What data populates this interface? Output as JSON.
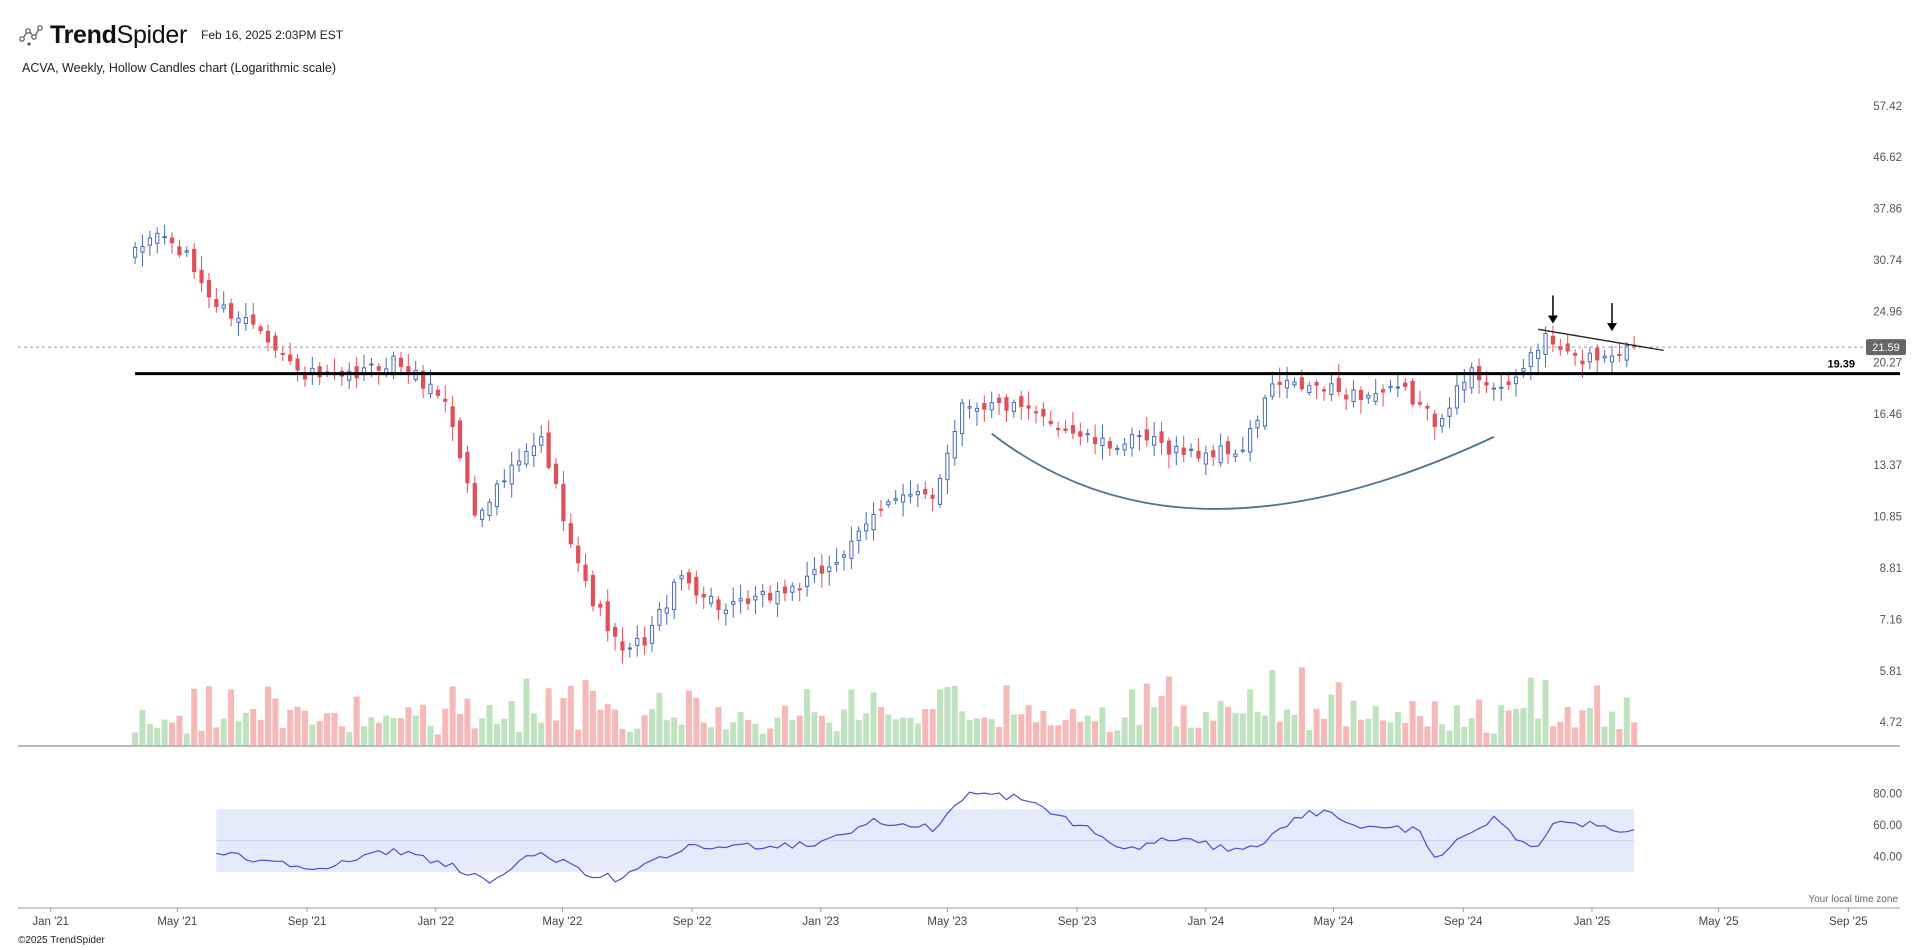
{
  "header": {
    "brand_bold": "Trend",
    "brand_light": "Spider",
    "timestamp": "Feb 16, 2025 2:03PM EST",
    "subtitle": "ACVA, Weekly, Hollow Candles chart (Logarithmic scale)"
  },
  "footer": {
    "copyright": "©2025 TrendSpider",
    "local_time_note": "Your local time zone"
  },
  "colors": {
    "up": "#4a6bb8",
    "down": "#e0505a",
    "volume_up": "#bfe3bf",
    "volume_down": "#f7b8b8",
    "rsi_line": "#4a4fd0",
    "rsi_band": "#e6ebfb",
    "support_line": "#000000",
    "curve": "#4e7394",
    "last_price_label": "#666666"
  },
  "chart_data": {
    "type": "candlestick",
    "symbol": "ACVA",
    "interval": "Weekly",
    "style": "Hollow Candles",
    "scale": "log",
    "x_range": [
      "2020-12-01",
      "2025-10-20"
    ],
    "x_ticks": [
      {
        "date": "2021-01-01",
        "label": "Jan '21"
      },
      {
        "date": "2021-05-01",
        "label": "May '21"
      },
      {
        "date": "2021-09-01",
        "label": "Sep '21"
      },
      {
        "date": "2022-01-01",
        "label": "Jan '22"
      },
      {
        "date": "2022-05-01",
        "label": "May '22"
      },
      {
        "date": "2022-09-01",
        "label": "Sep '22"
      },
      {
        "date": "2023-01-01",
        "label": "Jan '23"
      },
      {
        "date": "2023-05-01",
        "label": "May '23"
      },
      {
        "date": "2023-09-01",
        "label": "Sep '23"
      },
      {
        "date": "2024-01-01",
        "label": "Jan '24"
      },
      {
        "date": "2024-05-01",
        "label": "May '24"
      },
      {
        "date": "2024-09-01",
        "label": "Sep '24"
      },
      {
        "date": "2025-01-01",
        "label": "Jan '25"
      },
      {
        "date": "2025-05-01",
        "label": "May '25"
      },
      {
        "date": "2025-09-01",
        "label": "Sep '25"
      }
    ],
    "y_range": [
      4.3,
      60
    ],
    "y_ticks": [
      "57.42",
      "46.62",
      "37.86",
      "30.74",
      "24.96",
      "20.27",
      "16.46",
      "13.37",
      "10.85",
      "8.81",
      "7.16",
      "5.81",
      "4.72"
    ],
    "first_bar": "2021-03-22",
    "last_price": "21.59",
    "support_level": "19.39",
    "price_path": [
      {
        "date": "2021-03-22",
        "price": 31.5
      },
      {
        "date": "2021-04-12",
        "price": 34.5
      },
      {
        "date": "2021-05-10",
        "price": 31.0
      },
      {
        "date": "2021-06-07",
        "price": 25.5
      },
      {
        "date": "2021-07-19",
        "price": 23.5
      },
      {
        "date": "2021-08-23",
        "price": 19.5
      },
      {
        "date": "2021-10-04",
        "price": 18.8
      },
      {
        "date": "2021-11-22",
        "price": 20.5
      },
      {
        "date": "2022-01-10",
        "price": 17.5
      },
      {
        "date": "2022-02-07",
        "price": 11.0
      },
      {
        "date": "2022-03-21",
        "price": 13.5
      },
      {
        "date": "2022-04-11",
        "price": 14.8
      },
      {
        "date": "2022-05-02",
        "price": 11.0
      },
      {
        "date": "2022-05-23",
        "price": 8.2
      },
      {
        "date": "2022-06-27",
        "price": 6.2
      },
      {
        "date": "2022-07-18",
        "price": 6.6
      },
      {
        "date": "2022-08-22",
        "price": 8.5
      },
      {
        "date": "2022-10-03",
        "price": 7.4
      },
      {
        "date": "2022-11-07",
        "price": 7.8
      },
      {
        "date": "2022-12-19",
        "price": 8.3
      },
      {
        "date": "2023-01-30",
        "price": 9.6
      },
      {
        "date": "2023-03-06",
        "price": 11.8
      },
      {
        "date": "2023-04-17",
        "price": 11.7
      },
      {
        "date": "2023-05-15",
        "price": 17.2
      },
      {
        "date": "2023-06-26",
        "price": 17.0
      },
      {
        "date": "2023-08-07",
        "price": 16.0
      },
      {
        "date": "2023-09-25",
        "price": 14.5
      },
      {
        "date": "2023-11-06",
        "price": 14.8
      },
      {
        "date": "2023-12-18",
        "price": 14.0
      },
      {
        "date": "2024-02-05",
        "price": 14.2
      },
      {
        "date": "2024-03-04",
        "price": 18.5
      },
      {
        "date": "2024-04-15",
        "price": 18.3
      },
      {
        "date": "2024-05-27",
        "price": 17.8
      },
      {
        "date": "2024-07-08",
        "price": 18.0
      },
      {
        "date": "2024-08-05",
        "price": 16.0
      },
      {
        "date": "2024-09-09",
        "price": 19.5
      },
      {
        "date": "2024-10-14",
        "price": 18.0
      },
      {
        "date": "2024-11-04",
        "price": 21.0
      },
      {
        "date": "2024-11-18",
        "price": 22.3
      },
      {
        "date": "2024-12-16",
        "price": 20.5
      },
      {
        "date": "2025-01-13",
        "price": 21.0
      },
      {
        "date": "2025-02-10",
        "price": 21.59
      }
    ],
    "volume_note": "relative weekly volume bars, up weeks green, down weeks red",
    "rsi": {
      "y_ticks": [
        "80.00",
        "60.00",
        "40.00"
      ],
      "band": [
        30,
        70
      ],
      "midline": 50,
      "start": "2021-06-07",
      "path": [
        {
          "date": "2021-06-07",
          "value": 42
        },
        {
          "date": "2021-07-19",
          "value": 38
        },
        {
          "date": "2021-09-20",
          "value": 33
        },
        {
          "date": "2021-11-22",
          "value": 44
        },
        {
          "date": "2022-01-10",
          "value": 36
        },
        {
          "date": "2022-02-21",
          "value": 24
        },
        {
          "date": "2022-04-11",
          "value": 44
        },
        {
          "date": "2022-05-23",
          "value": 28
        },
        {
          "date": "2022-06-27",
          "value": 26
        },
        {
          "date": "2022-08-22",
          "value": 45
        },
        {
          "date": "2022-10-31",
          "value": 47
        },
        {
          "date": "2022-12-26",
          "value": 48
        },
        {
          "date": "2023-02-20",
          "value": 62
        },
        {
          "date": "2023-04-17",
          "value": 58
        },
        {
          "date": "2023-05-22",
          "value": 80
        },
        {
          "date": "2023-07-03",
          "value": 78
        },
        {
          "date": "2023-09-04",
          "value": 60
        },
        {
          "date": "2023-10-16",
          "value": 44
        },
        {
          "date": "2023-12-04",
          "value": 52
        },
        {
          "date": "2024-01-15",
          "value": 45
        },
        {
          "date": "2024-02-26",
          "value": 48
        },
        {
          "date": "2024-03-25",
          "value": 66
        },
        {
          "date": "2024-04-22",
          "value": 68
        },
        {
          "date": "2024-06-03",
          "value": 58
        },
        {
          "date": "2024-07-22",
          "value": 57
        },
        {
          "date": "2024-08-05",
          "value": 40
        },
        {
          "date": "2024-09-30",
          "value": 63
        },
        {
          "date": "2024-11-04",
          "value": 44
        },
        {
          "date": "2024-12-02",
          "value": 64
        },
        {
          "date": "2025-01-13",
          "value": 58
        },
        {
          "date": "2025-02-10",
          "value": 57
        }
      ]
    },
    "annotations": {
      "resistance_trendline": [
        {
          "date": "2024-11-11",
          "price": 23.2
        },
        {
          "date": "2025-03-10",
          "price": 21.3
        }
      ],
      "down_arrows": [
        {
          "date": "2024-11-25",
          "price": 23.0
        },
        {
          "date": "2025-01-20",
          "price": 22.3
        }
      ],
      "rounding_bottom_curve": [
        {
          "date": "2023-06-12",
          "price": 15.2
        },
        {
          "date": "2024-01-08",
          "price": 11.2
        },
        {
          "date": "2024-09-30",
          "price": 15.0
        }
      ]
    }
  }
}
